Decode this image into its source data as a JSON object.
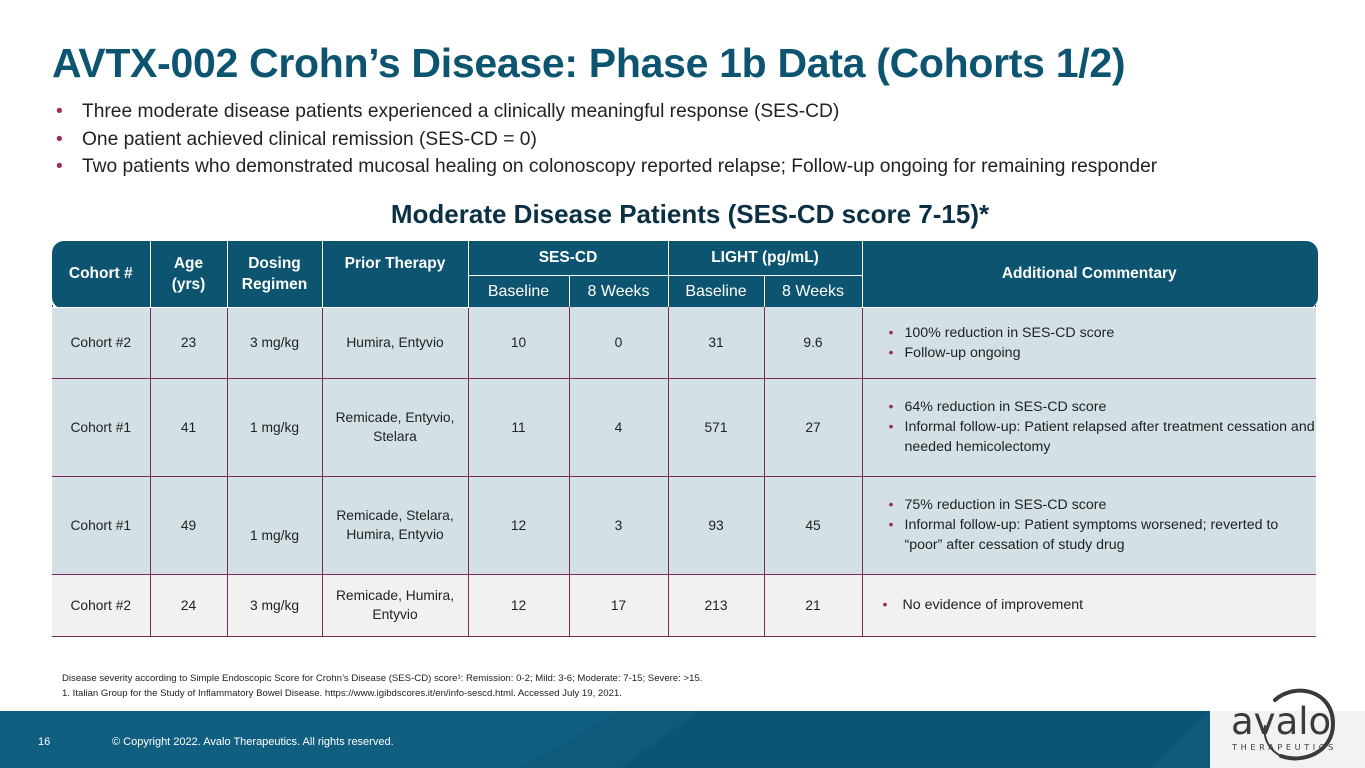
{
  "title": "AVTX-002 Crohn’s Disease: Phase 1b Data (Cohorts 1/2)",
  "bullets": [
    "Three moderate disease patients experienced a clinically meaningful response (SES-CD)",
    "One patient achieved clinical remission (SES-CD = 0)",
    "Two patients who demonstrated mucosal healing on colonoscopy reported relapse; Follow-up ongoing for remaining responder"
  ],
  "subtitle": "Moderate Disease Patients (SES-CD score 7-15)*",
  "table": {
    "headers": {
      "cohort": "Cohort #",
      "age": "Age (yrs)",
      "dosing": "Dosing Regimen",
      "prior": "Prior Therapy",
      "sescd": "SES-CD",
      "light": "LIGHT (pg/mL)",
      "commentary": "Additional Commentary",
      "baseline": "Baseline",
      "weeks8": "8 Weeks"
    },
    "rows": [
      {
        "cohort": "Cohort #2",
        "age": "23",
        "dosing": "3 mg/kg",
        "prior": "Humira, Entyvio",
        "ses_base": "10",
        "ses_8w": "0",
        "light_base": "31",
        "light_8w": "9.6",
        "comments": [
          "100% reduction in SES-CD score",
          "Follow-up ongoing"
        ]
      },
      {
        "cohort": "Cohort #1",
        "age": "41",
        "dosing": "1 mg/kg",
        "prior": "Remicade, Entyvio, Stelara",
        "ses_base": "11",
        "ses_8w": "4",
        "light_base": "571",
        "light_8w": "27",
        "comments": [
          "64% reduction in SES-CD score",
          "Informal follow-up: Patient relapsed after treatment cessation and needed hemicolectomy"
        ]
      },
      {
        "cohort": "Cohort #1",
        "age": "49",
        "dosing": "1 mg/kg",
        "prior": "Remicade, Stelara, Humira, Entyvio",
        "ses_base": "12",
        "ses_8w": "3",
        "light_base": "93",
        "light_8w": "45",
        "comments": [
          "75% reduction in SES-CD score",
          "Informal follow-up: Patient symptoms worsened; reverted to “poor” after cessation of study drug"
        ]
      },
      {
        "cohort": "Cohort #2",
        "age": "24",
        "dosing": "3 mg/kg",
        "prior": "Remicade, Humira, Entyvio",
        "ses_base": "12",
        "ses_8w": "17",
        "light_base": "213",
        "light_8w": "21",
        "comments": [
          "No evidence of improvement"
        ]
      }
    ]
  },
  "footnotes": [
    "Disease severity according to Simple Endoscopic Score for Crohn’s Disease (SES-CD) score¹: Remission: 0-2; Mild: 3-6; Moderate: 7-15; Severe: >15.",
    "1.  Italian Group for the Study of Inflammatory Bowel Disease. https://www.igibdscores.it/en/info-sescd.html. Accessed July 19, 2021."
  ],
  "footer": {
    "page_number": "16",
    "copyright": "© Copyright 2022. Avalo Therapeutics. All rights reserved.",
    "logo_text": "avalo",
    "logo_sub": "THERAPEUTICS"
  },
  "colors": {
    "title": "#0c5470",
    "header_band": "#0c5470",
    "row_blue": "#d3e1e6",
    "row_gray": "#f1f1f1",
    "accent_bullet": "#9a2f5c",
    "footer": "#0d5a7a"
  }
}
